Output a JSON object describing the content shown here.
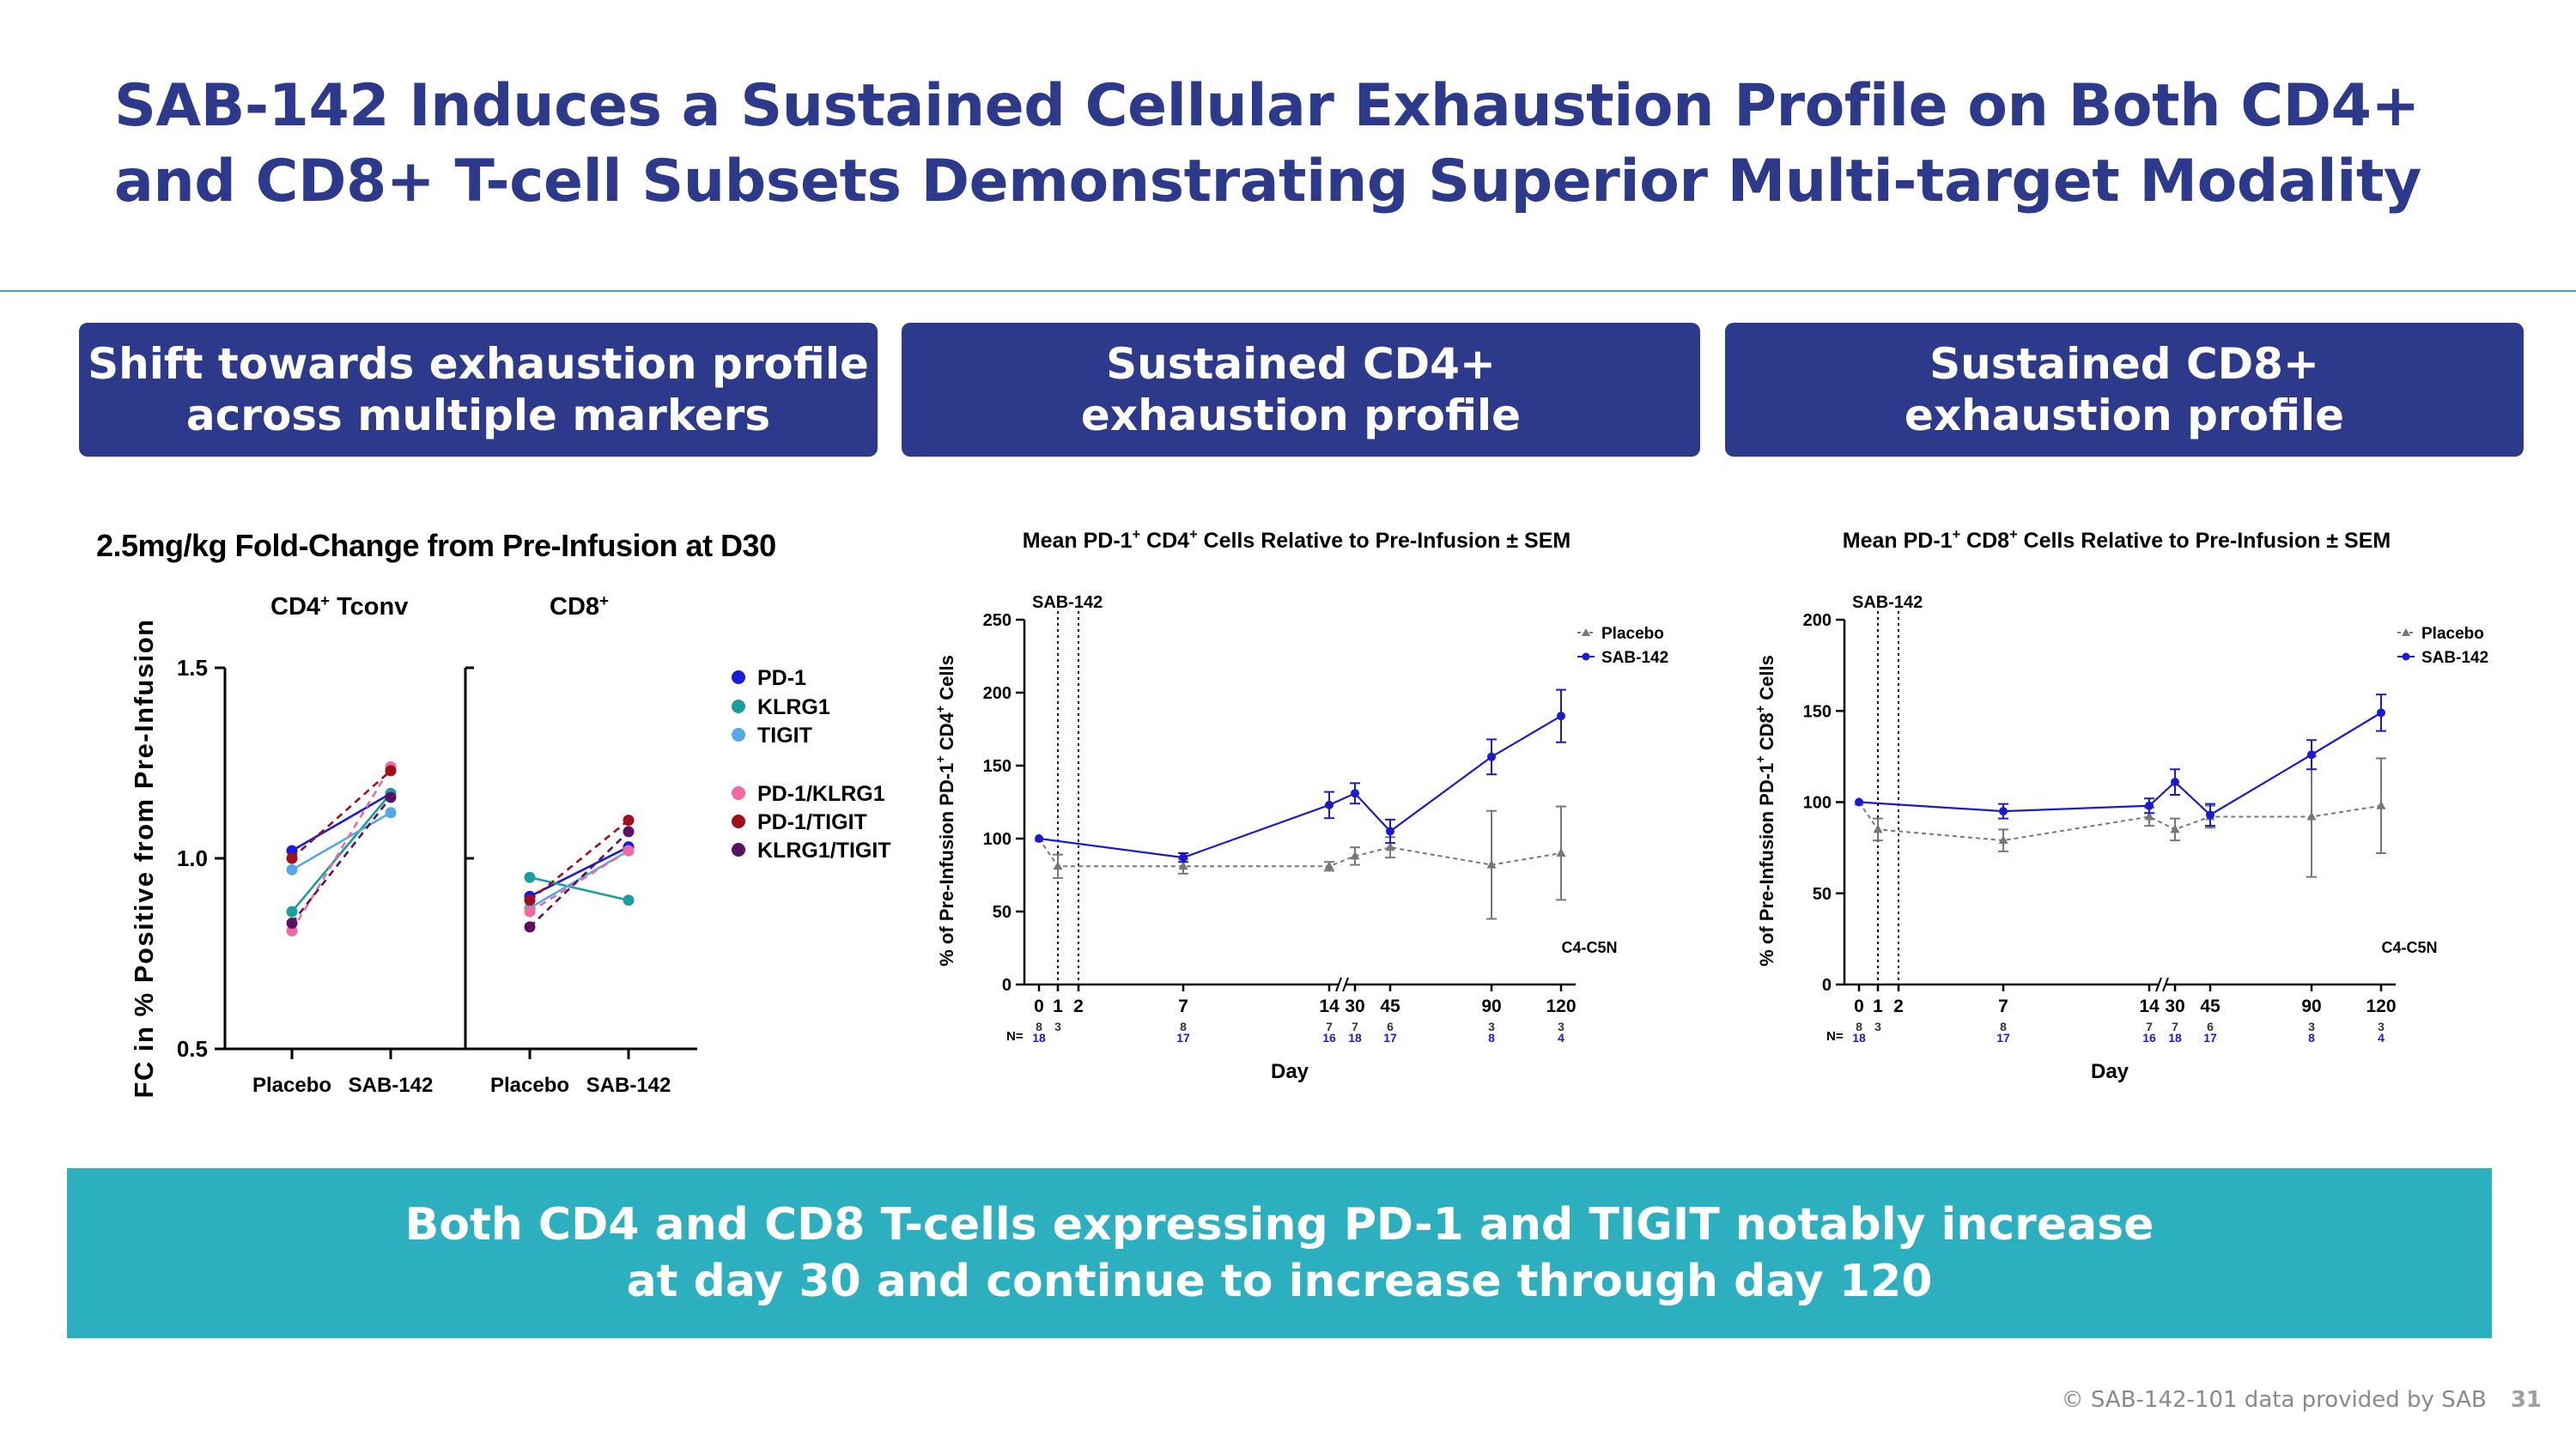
{
  "slide": {
    "title_line1": "SAB-142 Induces a Sustained Cellular Exhaustion Profile on Both CD4+",
    "title_line2": "and CD8+ T-cell Subsets Demonstrating Superior Multi-target Modality",
    "headers": [
      {
        "line1": "Shift towards exhaustion profile",
        "line2": "across multiple markers"
      },
      {
        "line1": "Sustained CD4+",
        "line2": "exhaustion profile"
      },
      {
        "line1": "Sustained CD8+",
        "line2": "exhaustion profile"
      }
    ],
    "conclusion_line1": "Both CD4 and CD8 T-cells expressing PD-1 and TIGIT notably increase",
    "conclusion_line2": "at day 30 and continue to increase through day 120",
    "footer": "© SAB-142-101 data provided by SAB",
    "page_number": "31"
  },
  "colors": {
    "navy": "#2d3a8c",
    "teal": "#2cb0bf",
    "PD-1": "#1a1adb",
    "KLRG1": "#1a9e9e",
    "TIGIT": "#55a8e8",
    "PD-1/KLRG1": "#ee6aa0",
    "PD-1/TIGIT": "#a0101a",
    "KLRG1/TIGIT": "#5c1060",
    "placebo": "#777777",
    "sab": "#1a1ad0"
  },
  "chart_data": [
    {
      "type": "scatter",
      "title": "2.5mg/kg Fold-Change from Pre-Infusion at D30",
      "ylabel": "FC in % Positive from Pre-Infusion",
      "ylim": [
        0.5,
        1.5
      ],
      "yticks": [
        "0.5",
        "1.0",
        "1.5"
      ],
      "panels": [
        {
          "label": "CD4",
          "label_sup": "+",
          "label_suffix": " Tconv",
          "categories": [
            "Placebo",
            "SAB-142"
          ]
        },
        {
          "label": "CD8",
          "label_sup": "+",
          "label_suffix": "",
          "categories": [
            "Placebo",
            "SAB-142"
          ]
        }
      ],
      "series": [
        {
          "name": "PD-1",
          "dashed": false,
          "cd4": [
            1.02,
            1.17
          ],
          "cd8": [
            0.9,
            1.03
          ]
        },
        {
          "name": "KLRG1",
          "dashed": false,
          "cd4": [
            0.86,
            1.17
          ],
          "cd8": [
            0.95,
            0.89
          ]
        },
        {
          "name": "TIGIT",
          "dashed": false,
          "cd4": [
            0.97,
            1.12
          ],
          "cd8": [
            0.87,
            1.02
          ]
        },
        {
          "name": "PD-1/KLRG1",
          "dashed": true,
          "cd4": [
            0.81,
            1.24
          ],
          "cd8": [
            0.86,
            1.02
          ]
        },
        {
          "name": "PD-1/TIGIT",
          "dashed": true,
          "cd4": [
            1.0,
            1.23
          ],
          "cd8": [
            0.89,
            1.1
          ]
        },
        {
          "name": "KLRG1/TIGIT",
          "dashed": true,
          "cd4": [
            0.83,
            1.16
          ],
          "cd8": [
            0.82,
            1.07
          ]
        }
      ]
    },
    {
      "type": "line",
      "title_pre": "Mean PD-1",
      "title_mid": " CD4",
      "title_post": " Cells Relative to Pre-Infusion ± SEM",
      "ylabel_pre": "% of Pre-Infusion PD-1",
      "ylabel_mid": " CD4",
      "ylabel_post": " Cells",
      "xlabel": "Day",
      "ylim": [
        0,
        250
      ],
      "yticks": [
        0,
        50,
        100,
        150,
        200,
        250
      ],
      "xticks": [
        "0",
        "1",
        "2",
        "7",
        "14",
        "30",
        "45",
        "90",
        "120"
      ],
      "annotation": "SAB-142",
      "corner_label": "C4-C5N",
      "n_label": "N=",
      "series": [
        {
          "name": "Placebo",
          "color": "placebo",
          "dashed": true,
          "marker": "triangle",
          "x": [
            "0",
            "1",
            "7",
            "14",
            "30",
            "45",
            "90",
            "120"
          ],
          "y": [
            100,
            81,
            81,
            81,
            88,
            94,
            82,
            90
          ],
          "err": [
            0,
            8,
            5,
            3,
            6,
            7,
            37,
            32
          ],
          "n": [
            "8",
            "3",
            "8",
            "7",
            "7",
            "6",
            "3",
            "3"
          ]
        },
        {
          "name": "SAB-142",
          "color": "sab",
          "dashed": false,
          "marker": "circle",
          "x": [
            "0",
            "7",
            "14",
            "30",
            "45",
            "90",
            "120"
          ],
          "y": [
            100,
            87,
            123,
            131,
            105,
            156,
            184
          ],
          "err": [
            0,
            3,
            9,
            7,
            8,
            12,
            18
          ],
          "n": [
            "18",
            "17",
            "16",
            "18",
            "17",
            "8",
            "4"
          ]
        }
      ]
    },
    {
      "type": "line",
      "title_pre": "Mean PD-1",
      "title_mid": " CD8",
      "title_post": " Cells Relative to Pre-Infusion ± SEM",
      "ylabel_pre": "% of Pre-Infusion PD-1",
      "ylabel_mid": " CD8",
      "ylabel_post": " Cells",
      "xlabel": "Day",
      "ylim": [
        0,
        200
      ],
      "yticks": [
        0,
        50,
        100,
        150,
        200
      ],
      "xticks": [
        "0",
        "1",
        "2",
        "7",
        "14",
        "30",
        "45",
        "90",
        "120"
      ],
      "annotation": "SAB-142",
      "corner_label": "C4-C5N",
      "n_label": "N=",
      "series": [
        {
          "name": "Placebo",
          "color": "placebo",
          "dashed": true,
          "marker": "triangle",
          "x": [
            "0",
            "1",
            "7",
            "14",
            "30",
            "45",
            "90",
            "120"
          ],
          "y": [
            100,
            85,
            79,
            92,
            85,
            92,
            92,
            98
          ],
          "err": [
            0,
            6,
            6,
            5,
            6,
            6,
            33,
            26
          ],
          "n": [
            "8",
            "3",
            "8",
            "7",
            "7",
            "6",
            "3",
            "3"
          ]
        },
        {
          "name": "SAB-142",
          "color": "sab",
          "dashed": false,
          "marker": "circle",
          "x": [
            "0",
            "7",
            "14",
            "30",
            "45",
            "90",
            "120"
          ],
          "y": [
            100,
            95,
            98,
            111,
            93,
            126,
            149
          ],
          "err": [
            0,
            4,
            4,
            7,
            6,
            8,
            10
          ],
          "n": [
            "18",
            "17",
            "16",
            "18",
            "17",
            "8",
            "4"
          ]
        }
      ]
    }
  ]
}
